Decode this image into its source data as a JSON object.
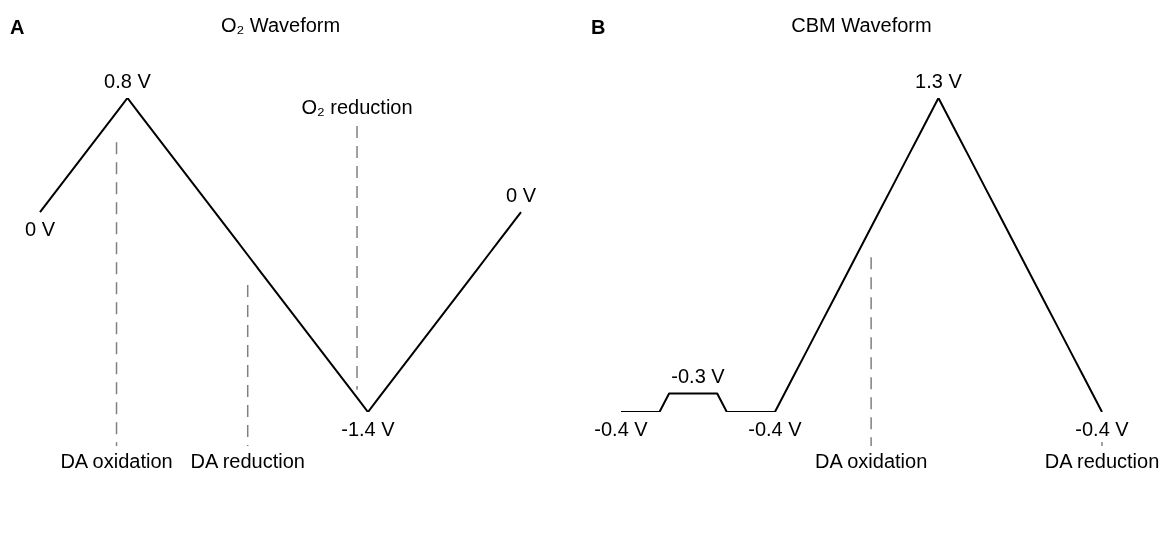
{
  "chart_data": [
    {
      "type": "line",
      "title": "O₂ Waveform",
      "annotations": [
        "A"
      ],
      "color": "#000000",
      "tick_labels": "x",
      "legend": false,
      "marker": "none",
      "line_style": "solid",
      "categories": [
        null,
        null,
        null,
        null,
        null,
        null,
        null,
        "DA oxidation",
        null,
        null,
        null,
        null,
        null,
        null,
        null,
        null,
        null,
        null,
        null,
        "DA reduction",
        null,
        null,
        null,
        null,
        null,
        null,
        null,
        null,
        null,
        "O₂ reduction",
        null,
        null,
        null,
        null,
        null,
        null,
        null,
        null,
        null,
        null,
        null,
        null,
        null,
        null,
        null
      ],
      "values": [
        0,
        0.1,
        0.2,
        0.3,
        0.4,
        0.5,
        0.6,
        0.7,
        0.8,
        0.7,
        0.6,
        0.5,
        0.4,
        0.3,
        0.2,
        0.1,
        0,
        -0.1,
        -0.2,
        -0.3,
        -0.4,
        -0.5,
        -0.6,
        -0.7,
        -0.8,
        -0.9,
        -1.0,
        -1.1,
        -1.2,
        -1.3,
        -1.4,
        -1.3,
        -1.2,
        -1.1,
        -1.0,
        -0.9,
        -0.8,
        -0.7,
        -0.6,
        -0.5,
        -0.4,
        -0.3,
        -0.2,
        -0.1,
        0
      ],
      "value_labels": [
        "0 V",
        null,
        null,
        null,
        null,
        null,
        null,
        null,
        "0.8 V",
        null,
        null,
        null,
        null,
        null,
        null,
        null,
        null,
        null,
        null,
        null,
        null,
        null,
        null,
        null,
        null,
        null,
        null,
        null,
        null,
        null,
        "-1.4 V",
        null,
        null,
        null,
        null,
        null,
        null,
        null,
        null,
        null,
        null,
        null,
        null,
        null,
        "0 V"
      ]
    },
    {
      "type": "line",
      "title": "CBM Waveform",
      "annotations": [
        "B"
      ],
      "color": "#000000",
      "tick_labels": "x",
      "legend": false,
      "marker": "none",
      "line_style": "solid",
      "categories": [
        null,
        null,
        null,
        null,
        null,
        null,
        null,
        null,
        null,
        null,
        null,
        null,
        null,
        null,
        null,
        null,
        null,
        null,
        null,
        null,
        null,
        null,
        null,
        null,
        null,
        null,
        "DA oxidation",
        null,
        null,
        null,
        null,
        null,
        null,
        null,
        null,
        null,
        null,
        null,
        null,
        null,
        null,
        null,
        null,
        null,
        null,
        null,
        null,
        null,
        null,
        null,
        "DA reduction"
      ],
      "values": [
        -0.4,
        -0.4,
        -0.4,
        -0.4,
        -0.4,
        -0.3,
        -0.3,
        -0.3,
        -0.3,
        -0.3,
        -0.3,
        -0.4,
        -0.4,
        -0.4,
        -0.4,
        -0.4,
        -0.4,
        -0.3,
        -0.2,
        -0.1,
        0,
        0.1,
        0.2,
        0.3,
        0.4,
        0.5,
        0.6,
        0.7,
        0.8,
        0.9,
        1.0,
        1.1,
        1.2,
        1.3,
        1.2,
        1.1,
        1.0,
        0.9,
        0.8,
        0.7,
        0.6,
        0.5,
        0.4,
        0.3,
        0.2,
        0.1,
        0,
        -0.1,
        -0.2,
        -0.3,
        -0.4
      ],
      "value_labels": [
        "-0.4 V",
        null,
        null,
        null,
        null,
        null,
        null,
        null,
        "-0.3 V",
        null,
        null,
        null,
        null,
        null,
        null,
        null,
        "-0.4 V",
        null,
        null,
        null,
        null,
        null,
        null,
        null,
        null,
        null,
        null,
        null,
        null,
        null,
        null,
        null,
        null,
        "1.3 V",
        null,
        null,
        null,
        null,
        null,
        null,
        null,
        null,
        null,
        null,
        null,
        null,
        null,
        null,
        null,
        null,
        "-0.4 V"
      ]
    }
  ]
}
